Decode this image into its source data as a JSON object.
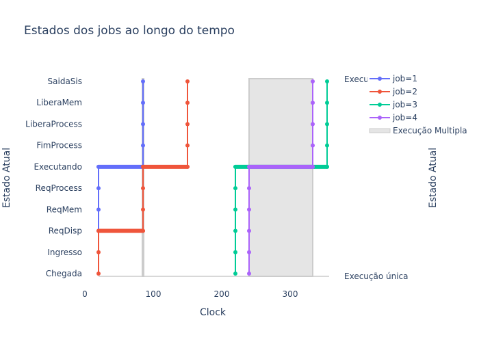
{
  "chart_data": {
    "type": "line",
    "title": "Estados dos jobs ao longo do tempo",
    "xlabel": "Clock",
    "ylabel": "Estado Atual",
    "ylabel_right": "Estado Atual",
    "xlim": [
      0,
      354
    ],
    "xticks": [
      0,
      100,
      200,
      300
    ],
    "categories": [
      "Chegada",
      "Ingresso",
      "ReqDisp",
      "ReqMem",
      "ReqProcess",
      "Executando",
      "FimProcess",
      "LiberaProcess",
      "LiberaMem",
      "SaidaSis"
    ],
    "grid": false,
    "legend_position": "top-right",
    "series": [
      {
        "name": "job=1",
        "color": "#636efa",
        "points": [
          {
            "x": 20,
            "y": "ReqDisp"
          },
          {
            "x": 20,
            "y": "ReqMem"
          },
          {
            "x": 20,
            "y": "ReqProcess"
          },
          {
            "x": 20,
            "y": "Executando"
          },
          {
            "x": 85,
            "y": "Executando"
          },
          {
            "x": 85,
            "y": "FimProcess"
          },
          {
            "x": 85,
            "y": "LiberaProcess"
          },
          {
            "x": 85,
            "y": "LiberaMem"
          },
          {
            "x": 85,
            "y": "SaidaSis"
          }
        ]
      },
      {
        "name": "job=2",
        "color": "#ef553b",
        "points": [
          {
            "x": 20,
            "y": "Chegada"
          },
          {
            "x": 20,
            "y": "Ingresso"
          },
          {
            "x": 20,
            "y": "ReqDisp"
          },
          {
            "x": 85,
            "y": "ReqDisp"
          },
          {
            "x": 85,
            "y": "ReqMem"
          },
          {
            "x": 85,
            "y": "ReqProcess"
          },
          {
            "x": 85,
            "y": "Executando"
          },
          {
            "x": 150,
            "y": "Executando"
          },
          {
            "x": 150,
            "y": "FimProcess"
          },
          {
            "x": 150,
            "y": "LiberaProcess"
          },
          {
            "x": 150,
            "y": "LiberaMem"
          },
          {
            "x": 150,
            "y": "SaidaSis"
          }
        ]
      },
      {
        "name": "job=3",
        "color": "#00cc96",
        "points": [
          {
            "x": 220,
            "y": "Chegada"
          },
          {
            "x": 220,
            "y": "Ingresso"
          },
          {
            "x": 220,
            "y": "ReqDisp"
          },
          {
            "x": 220,
            "y": "ReqMem"
          },
          {
            "x": 220,
            "y": "ReqProcess"
          },
          {
            "x": 220,
            "y": "Executando"
          },
          {
            "x": 354,
            "y": "Executando"
          },
          {
            "x": 354,
            "y": "FimProcess"
          },
          {
            "x": 354,
            "y": "LiberaProcess"
          },
          {
            "x": 354,
            "y": "LiberaMem"
          },
          {
            "x": 354,
            "y": "SaidaSis"
          }
        ]
      },
      {
        "name": "job=4",
        "color": "#ab63fa",
        "points": [
          {
            "x": 240,
            "y": "Chegada"
          },
          {
            "x": 240,
            "y": "Ingresso"
          },
          {
            "x": 240,
            "y": "ReqDisp"
          },
          {
            "x": 240,
            "y": "ReqMem"
          },
          {
            "x": 240,
            "y": "ReqProcess"
          },
          {
            "x": 240,
            "y": "Executando"
          },
          {
            "x": 333,
            "y": "Executando"
          },
          {
            "x": 333,
            "y": "FimProcess"
          },
          {
            "x": 333,
            "y": "LiberaProcess"
          },
          {
            "x": 333,
            "y": "LiberaMem"
          },
          {
            "x": 333,
            "y": "SaidaSis"
          }
        ]
      }
    ],
    "shapes": [
      {
        "name": "Execução Multipla",
        "x0": 240,
        "x1": 333,
        "y0": "Chegada",
        "y1": "SaidaSis",
        "fill": "#e5e5e5",
        "line": "#cccccc"
      },
      {
        "name": "Execução única",
        "x0": 84,
        "x1": 86,
        "y0": "Chegada",
        "y1": "SaidaSis",
        "fill": "#e5e5e5",
        "line": "#cccccc"
      }
    ],
    "right_annotations": {
      "top": "Execução Multipla",
      "bottom": "Execução única"
    },
    "legend_entries": [
      "job=1",
      "job=2",
      "job=3",
      "job=4",
      "Execução Multipla"
    ]
  }
}
